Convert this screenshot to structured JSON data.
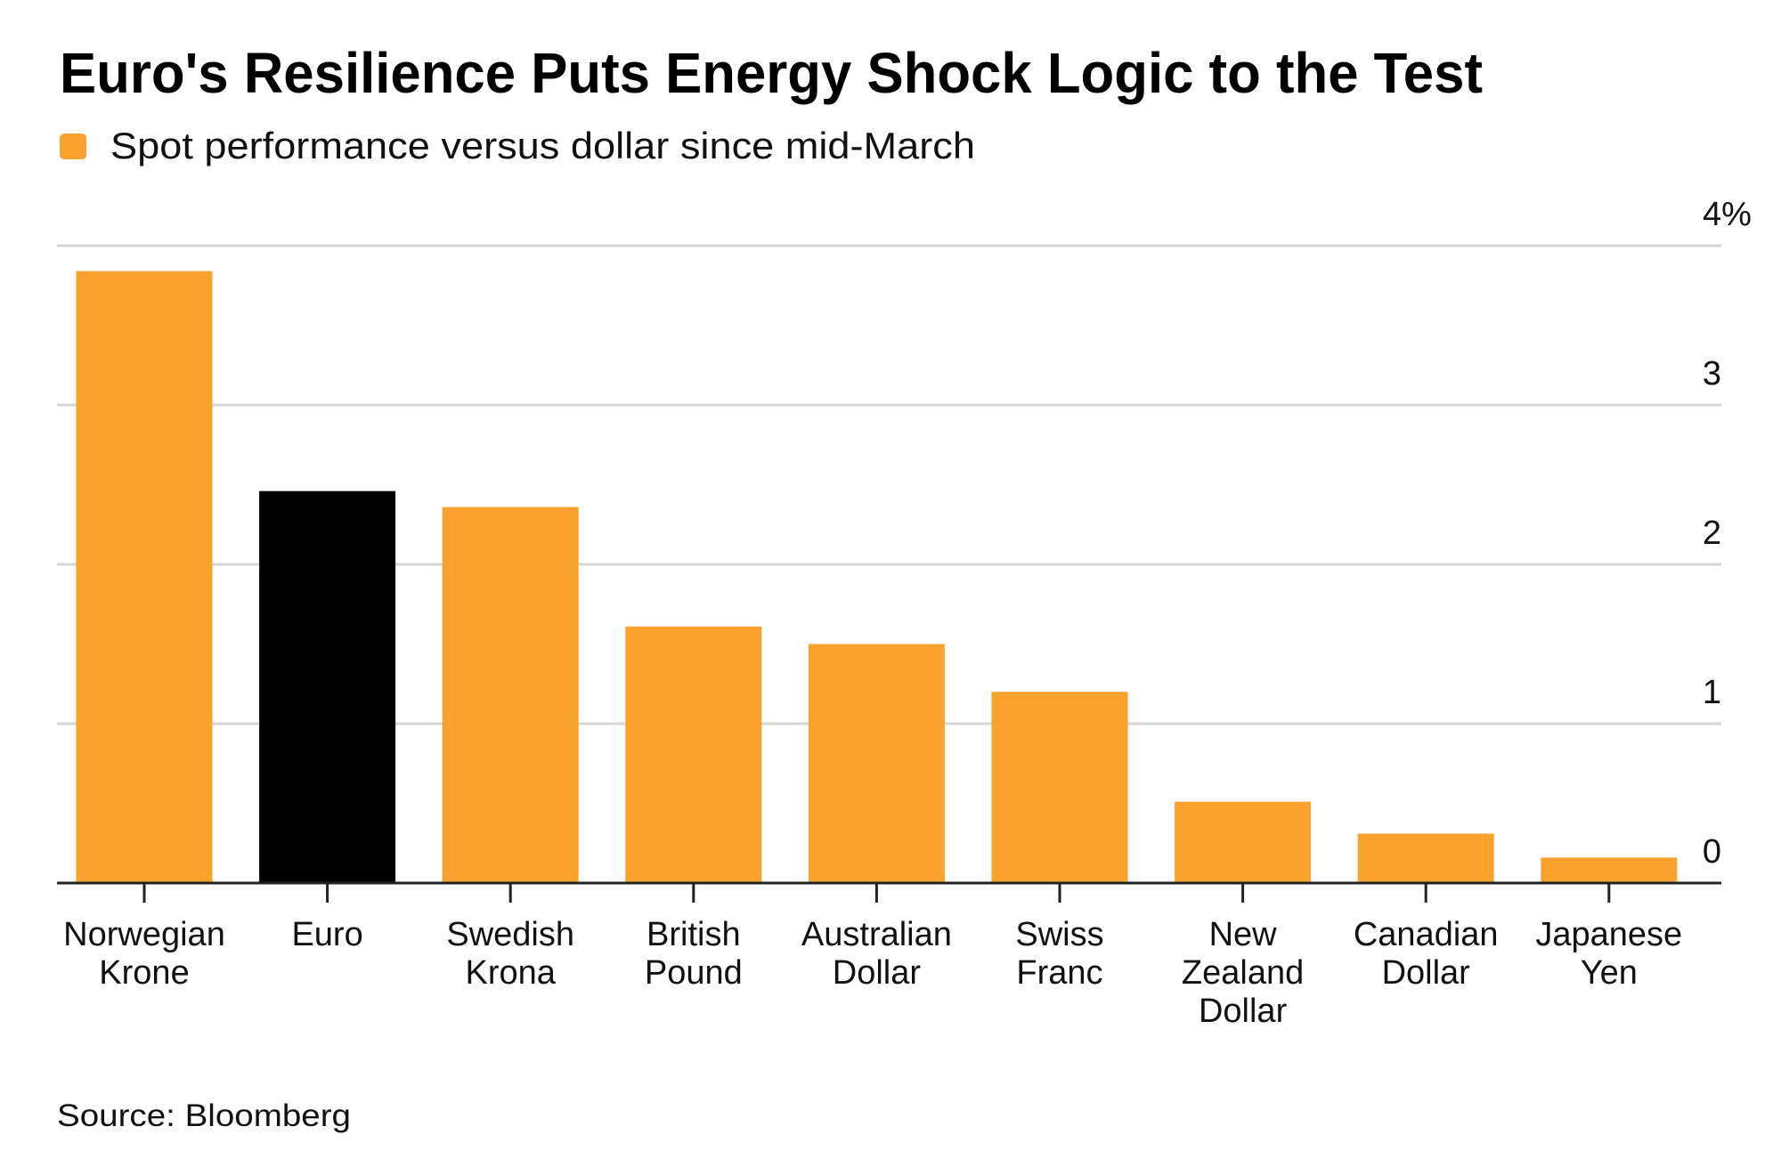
{
  "chart_data": {
    "type": "bar",
    "title": "Euro's Resilience Puts Energy Shock Logic to the Test",
    "legend": [
      {
        "label": "Spot performance versus dollar since mid-March",
        "color": "#FBA12E"
      }
    ],
    "legend_placement": "top-left",
    "categories": [
      [
        "Norwegian",
        "Krone"
      ],
      [
        "Euro"
      ],
      [
        "Swedish",
        "Krona"
      ],
      [
        "British",
        "Pound"
      ],
      [
        "Australian",
        "Dollar"
      ],
      [
        "Swiss",
        "Franc"
      ],
      [
        "New",
        "Zealand",
        "Dollar"
      ],
      [
        "Canadian",
        "Dollar"
      ],
      [
        "Japanese",
        "Yen"
      ]
    ],
    "series": [
      {
        "name": "Spot performance versus dollar since mid-March",
        "unit": "%",
        "values": [
          3.84,
          2.46,
          2.36,
          1.61,
          1.5,
          1.2,
          0.51,
          0.31,
          0.16
        ],
        "colors": [
          "#FBA12E",
          "#000000",
          "#FBA12E",
          "#FBA12E",
          "#FBA12E",
          "#FBA12E",
          "#FBA12E",
          "#FBA12E",
          "#FBA12E"
        ]
      }
    ],
    "highlighted_category": "Euro",
    "xlabel": "",
    "ylabel": "",
    "ylim": [
      0,
      4
    ],
    "yticks": [
      0,
      1,
      2,
      3,
      4
    ],
    "ytick_labels": [
      "0",
      "1",
      "2",
      "3",
      "4%"
    ],
    "yaxis_side": "right",
    "grid": true,
    "source": "Source: Bloomberg"
  }
}
